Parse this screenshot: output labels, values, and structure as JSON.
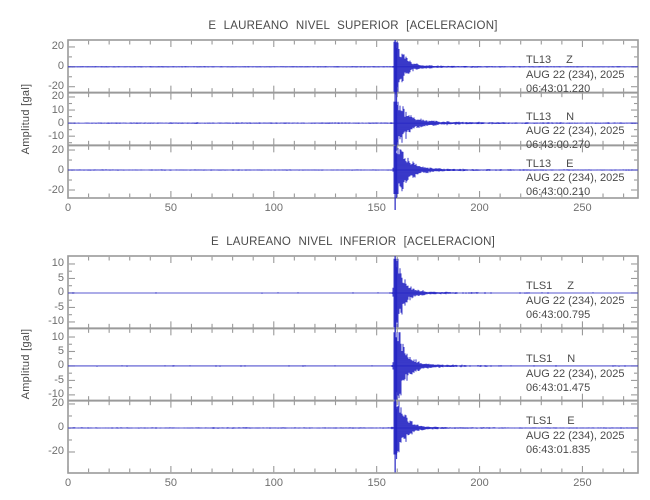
{
  "colors": {
    "trace": "#2323c3",
    "frame": "#9a9a9a",
    "text": "#4a4a4a",
    "tick_label": "#6f6f6f"
  },
  "chart_data": [
    {
      "type": "line",
      "subtype": "seismogram-acceleration",
      "title": "E LAUREANO NIVEL SUPERIOR [ACELERACION]",
      "ylabel": "Amplitud [gal]",
      "xlim": [
        0,
        277
      ],
      "xticks_major": [
        0,
        50,
        100,
        150,
        200,
        250
      ],
      "xtick_minor_step": 10,
      "grid": false,
      "legend": "none",
      "traces": [
        {
          "station": "TL13",
          "component": "Z",
          "date_label": "AUG 22 (234), 2025",
          "time_label": "06:43:01.220",
          "ylim_gal": [
            -26,
            27
          ],
          "yticks_major": [
            {
              "label": "20",
              "value": 20
            },
            {
              "label": "0",
              "value": 0
            },
            {
              "label": "-20",
              "value": -20
            }
          ],
          "yticks_minor": [
            10,
            -10
          ],
          "onset_s": 158,
          "peak_gal": 28,
          "needle_up_gal": 27,
          "needle_down_gal": -28,
          "envelope": {
            "p1": 70,
            "tau1": 3.2,
            "p2": 3.5,
            "tau2": 16
          },
          "noise_gal": 0.5,
          "seed": 11
        },
        {
          "station": "TL13",
          "component": "N",
          "date_label": "AUG 22 (234), 2025",
          "time_label": "06:43:00.270",
          "ylim_gal": [
            -17,
            23.3
          ],
          "yticks_major": [
            {
              "label": "20",
              "value": 20
            },
            {
              "label": "10",
              "value": 10
            },
            {
              "label": "0",
              "value": 0
            },
            {
              "label": "-10",
              "value": -10
            }
          ],
          "yticks_minor": [
            15,
            5,
            -5,
            -15
          ],
          "onset_s": 158,
          "peak_gal": 40,
          "needle_up_gal": 40,
          "needle_down_gal": -30,
          "envelope": {
            "p1": 45,
            "tau1": 4.2,
            "p2": 4,
            "tau2": 20
          },
          "noise_gal": 0.45,
          "seed": 22
        },
        {
          "station": "TL13",
          "component": "E",
          "date_label": "AUG 22 (234), 2025",
          "time_label": "06:43:00.210",
          "ylim_gal": [
            -28,
            24.7
          ],
          "yticks_major": [
            {
              "label": "20",
              "value": 20
            },
            {
              "label": "0",
              "value": 0
            },
            {
              "label": "-20",
              "value": -20
            }
          ],
          "yticks_minor": [
            10,
            -10
          ],
          "onset_s": 158,
          "peak_gal": 40,
          "needle_up_gal": 24,
          "needle_down_gal": -40,
          "envelope": {
            "p1": 55,
            "tau1": 4.6,
            "p2": 4,
            "tau2": 20
          },
          "noise_gal": 0.5,
          "seed": 33
        }
      ]
    },
    {
      "type": "line",
      "subtype": "seismogram-acceleration",
      "title": "E LAUREANO NIVEL INFERIOR [ACELERACION]",
      "ylabel": "Amplitud [gal]",
      "xlim": [
        0,
        277
      ],
      "xticks_major": [
        0,
        50,
        100,
        150,
        200,
        250
      ],
      "xtick_minor_step": 10,
      "grid": false,
      "legend": "none",
      "traces": [
        {
          "station": "TLS1",
          "component": "Z",
          "date_label": "AUG 22 (234), 2025",
          "time_label": "06:43:00.795",
          "ylim_gal": [
            -12.2,
            12.75
          ],
          "yticks_major": [
            {
              "label": "10",
              "value": 10
            },
            {
              "label": "5",
              "value": 5
            },
            {
              "label": "0",
              "value": 0
            },
            {
              "label": "-5",
              "value": -5
            },
            {
              "label": "-10",
              "value": -10
            }
          ],
          "yticks_minor": [
            7.5,
            2.5,
            -2.5,
            -7.5
          ],
          "onset_s": 158,
          "peak_gal": 13.5,
          "needle_up_gal": 12.7,
          "needle_down_gal": -13.5,
          "envelope": {
            "p1": 35,
            "tau1": 3.0,
            "p2": 1.6,
            "tau2": 14
          },
          "noise_gal": 0.2,
          "seed": 44
        },
        {
          "station": "TLS1",
          "component": "N",
          "date_label": "AUG 22 (234), 2025",
          "time_label": "06:43:01.475",
          "ylim_gal": [
            -12,
            13
          ],
          "yticks_major": [
            {
              "label": "10",
              "value": 10
            },
            {
              "label": "5",
              "value": 5
            },
            {
              "label": "0",
              "value": 0
            },
            {
              "label": "-5",
              "value": -5
            },
            {
              "label": "-10",
              "value": -10
            }
          ],
          "yticks_minor": [
            7.5,
            2.5,
            -2.5,
            -7.5
          ],
          "onset_s": 158,
          "peak_gal": 14,
          "needle_up_gal": 14,
          "needle_down_gal": -13,
          "envelope": {
            "p1": 35,
            "tau1": 3.6,
            "p2": 1.8,
            "tau2": 16
          },
          "noise_gal": 0.2,
          "seed": 55
        },
        {
          "station": "TLS1",
          "component": "E",
          "date_label": "AUG 22 (234), 2025",
          "time_label": "06:43:01.835",
          "ylim_gal": [
            -37.5,
            22.75
          ],
          "yticks_major": [
            {
              "label": "20",
              "value": 20
            },
            {
              "label": "0",
              "value": 0
            },
            {
              "label": "-20",
              "value": -20
            }
          ],
          "yticks_minor": [
            10,
            -10
          ],
          "onset_s": 158,
          "peak_gal": 37,
          "needle_up_gal": 22.7,
          "needle_down_gal": -37,
          "envelope": {
            "p1": 60,
            "tau1": 3.6,
            "p2": 3,
            "tau2": 12
          },
          "noise_gal": 0.45,
          "seed": 66
        }
      ]
    }
  ]
}
